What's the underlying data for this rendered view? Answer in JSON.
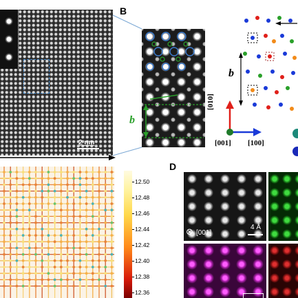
{
  "panel_labels": {
    "b": "B",
    "d": "D"
  },
  "panel_a": {
    "scalebar": "2 nm"
  },
  "panel_b": {
    "lattice_label": "b",
    "axes": {
      "vertical": "[010]",
      "out_of_plane": "[001]",
      "horizontal": "[100]"
    },
    "structure_label": "b"
  },
  "panel_c": {
    "colorbar_ticks": [
      "12.50",
      "12.48",
      "12.46",
      "12.44",
      "12.42",
      "12.40",
      "12.38",
      "12.36"
    ]
  },
  "panel_d": {
    "zone_axis": "[001]",
    "scalebar": "4 Å"
  },
  "colors": {
    "green_label": "#2aa02a",
    "blue_box": "#3a78c8",
    "arrow_red": "#e0201a",
    "arrow_blue": "#1a3ad8"
  }
}
